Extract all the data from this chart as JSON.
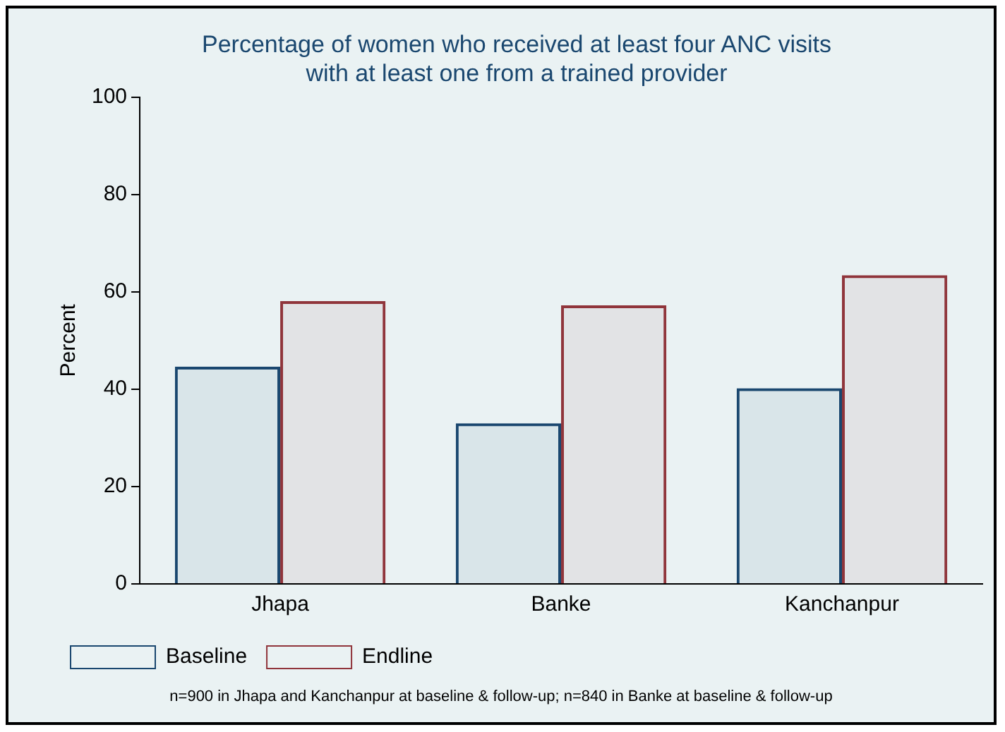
{
  "chart_data": {
    "type": "bar",
    "title": [
      "Percentage of women who received at least four ANC visits",
      "with at least one from a trained provider"
    ],
    "ylabel": "Percent",
    "categories": [
      "Jhapa",
      "Banke",
      "Kanchanpur"
    ],
    "series": [
      {
        "name": "Baseline",
        "color": "#1a476f",
        "values": [
          44.6,
          33.0,
          40.2
        ]
      },
      {
        "name": "Endline",
        "color": "#90353b",
        "values": [
          58.1,
          57.2,
          63.4
        ]
      }
    ],
    "ylim": [
      0,
      100
    ],
    "yticks": [
      0,
      20,
      40,
      60,
      80,
      100
    ],
    "grid": false,
    "legend": "bottom left",
    "annotations": [
      "n=900 in Jhapa and Kanchanpur at baseline & follow-up; n=840 in Banke at baseline & follow-up"
    ]
  }
}
